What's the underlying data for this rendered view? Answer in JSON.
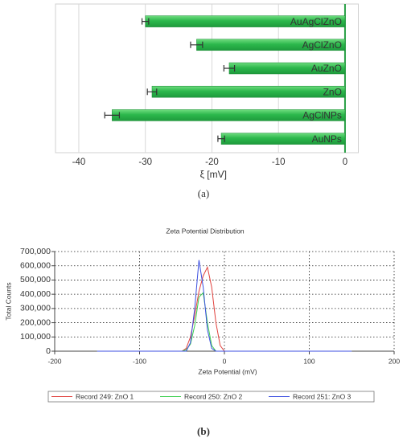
{
  "chart_data": [
    {
      "type": "bar",
      "orientation": "horizontal",
      "caption": "(a)",
      "x_label": "ξ [mV]",
      "categories": [
        "AuAgClZnO",
        "AgClZnO",
        "AuZnO",
        "ZnO",
        "AgClNPs",
        "AuNPs"
      ],
      "values": [
        -30,
        -22.3,
        -17.4,
        -29,
        -35,
        -18.6
      ],
      "errors": [
        0.5,
        0.9,
        0.8,
        0.7,
        1.1,
        0.5
      ],
      "color": "#29b34a",
      "xlim": [
        -43.5,
        2
      ],
      "xticks": [
        -40,
        -30,
        -20,
        -10,
        0
      ],
      "grid": true
    },
    {
      "type": "line",
      "caption": "(b)",
      "title": "Zeta Potential Distribution",
      "x_label": "Zeta Potential (mV)",
      "y_label": "Total Counts",
      "x": [
        -150,
        -60,
        -50,
        -45,
        -40,
        -35,
        -30,
        -25,
        -20,
        -15,
        -10,
        -5,
        0,
        150
      ],
      "series": [
        {
          "name": "Record 249: ZnO 1",
          "color": "#e0403c",
          "values": [
            0,
            0,
            0,
            20000,
            100000,
            250000,
            420000,
            530000,
            590000,
            450000,
            200000,
            40000,
            0,
            0
          ]
        },
        {
          "name": "Record 250: ZnO 2",
          "color": "#3ccf4e",
          "values": [
            0,
            0,
            0,
            10000,
            50000,
            180000,
            380000,
            410000,
            200000,
            40000,
            0,
            0,
            0,
            0
          ]
        },
        {
          "name": "Record 251: ZnO 3",
          "color": "#3c4fe0",
          "values": [
            0,
            0,
            0,
            0,
            60000,
            300000,
            640000,
            450000,
            150000,
            20000,
            0,
            0,
            0,
            0
          ]
        }
      ],
      "xlim": [
        -200,
        200
      ],
      "xticks": [
        -200,
        -100,
        0,
        100,
        200
      ],
      "ylim": [
        0,
        700000
      ],
      "yticks": [
        0,
        {
          "value": 100000,
          "label": "100,000"
        },
        {
          "value": 200000,
          "label": "200,000"
        },
        {
          "value": 300000,
          "label": "300,000"
        },
        {
          "value": 400000,
          "label": "400,000"
        },
        {
          "value": 500000,
          "label": "500,000"
        },
        {
          "value": 600000,
          "label": "600,000"
        },
        {
          "value": 700000,
          "label": "700,000"
        }
      ],
      "grid": true
    }
  ]
}
